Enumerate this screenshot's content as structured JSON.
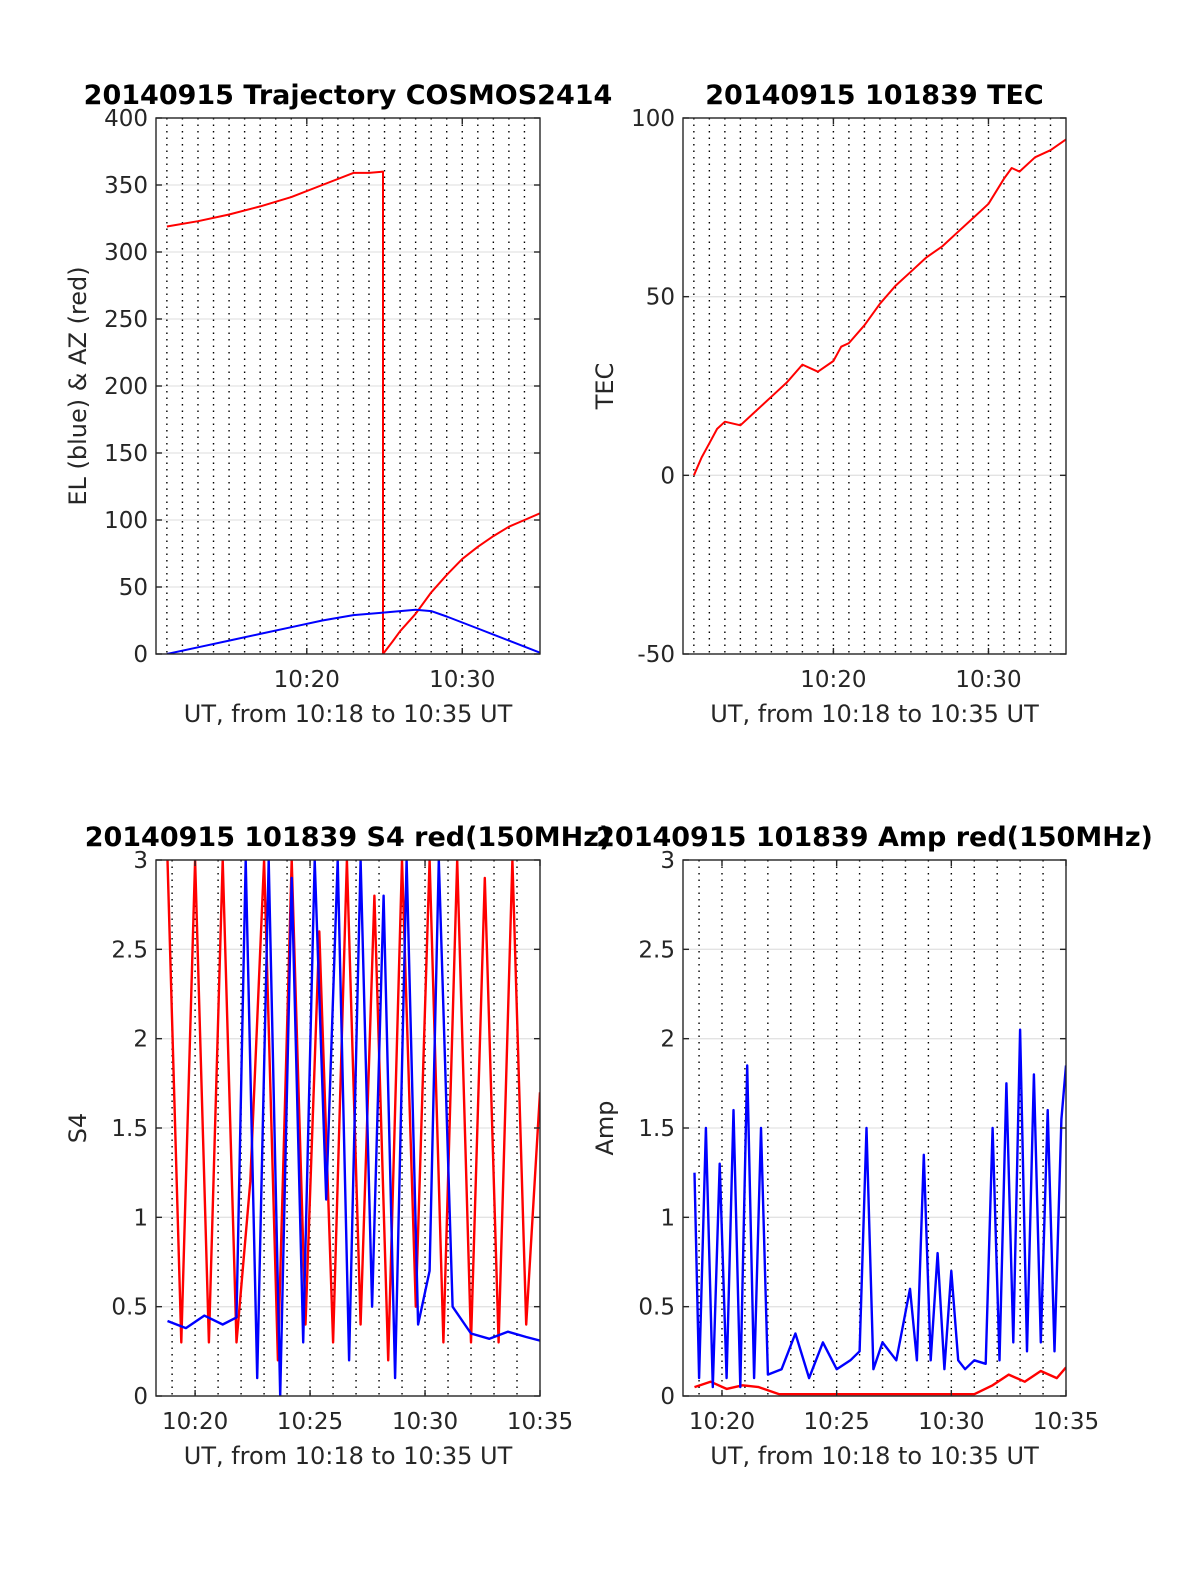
{
  "chart_data": [
    {
      "type": "line",
      "title": "20140915 Trajectory COSMOS2414",
      "xlabel": "UT, from 10:18 to 10:35 UT",
      "ylabel": "EL (blue) & AZ (red)",
      "xlim": [
        10.3,
        35
      ],
      "ylim": [
        0,
        400
      ],
      "yticks": [
        0,
        50,
        100,
        150,
        200,
        250,
        300,
        350,
        400
      ],
      "xticks": [
        {
          "value": 20,
          "label": "10:20"
        },
        {
          "value": 30,
          "label": "10:30"
        }
      ],
      "grid": true,
      "series": [
        {
          "color": "#ff0000",
          "x": [
            11,
            13,
            15,
            17,
            19,
            21,
            23,
            24,
            24.9,
            24.9,
            25.5,
            26,
            27,
            28,
            29,
            30,
            31,
            32,
            33,
            34,
            35
          ],
          "y": [
            319,
            323,
            328,
            334,
            341,
            350,
            359,
            359,
            360,
            0,
            9,
            17,
            30,
            46,
            59,
            71,
            80,
            88,
            95,
            100,
            105
          ]
        },
        {
          "color": "#0000ff",
          "x": [
            11,
            13,
            15,
            17,
            19,
            21,
            23,
            25,
            26,
            27,
            28,
            29,
            31,
            33,
            35
          ],
          "y": [
            0,
            5,
            10,
            15,
            20,
            25,
            29,
            31,
            32,
            33,
            32,
            28,
            19,
            10,
            1
          ]
        }
      ]
    },
    {
      "type": "line",
      "title": "20140915 101839 TEC",
      "xlabel": "UT, from 10:18 to 10:35 UT",
      "ylabel": "TEC",
      "xlim": [
        10.3,
        35
      ],
      "ylim": [
        -50,
        100
      ],
      "yticks": [
        -50,
        0,
        50,
        100
      ],
      "xticks": [
        {
          "value": 20,
          "label": "10:20"
        },
        {
          "value": 30,
          "label": "10:30"
        }
      ],
      "grid": true,
      "series": [
        {
          "color": "#ff0000",
          "x": [
            11,
            11.5,
            12,
            12.5,
            13,
            14,
            15,
            16,
            17,
            18,
            19,
            20,
            20.5,
            21,
            22,
            23,
            24,
            25,
            26,
            27,
            28,
            29,
            30,
            31,
            31.5,
            32,
            33,
            34,
            35
          ],
          "y": [
            0,
            5,
            9,
            13,
            15,
            14,
            18,
            22,
            26,
            31,
            29,
            32,
            36,
            37,
            42,
            48,
            53,
            57,
            61,
            64,
            68,
            72,
            76,
            83,
            86,
            85,
            89,
            91,
            94
          ]
        }
      ]
    },
    {
      "type": "line",
      "title": "20140915 101839 S4 red(150MHz)",
      "xlabel": "UT, from 10:18 to 10:35 UT",
      "ylabel": "S4",
      "xlim": [
        18.3,
        35
      ],
      "ylim": [
        0,
        3
      ],
      "yticks": [
        0,
        0.5,
        1,
        1.5,
        2,
        2.5,
        3
      ],
      "xticks": [
        {
          "value": 20,
          "label": "10:20"
        },
        {
          "value": 25,
          "label": "10:25"
        },
        {
          "value": 30,
          "label": "10:30"
        },
        {
          "value": 35,
          "label": "10:35"
        }
      ],
      "grid": true,
      "series": [
        {
          "color": "#ff0000",
          "x": [
            18.8,
            19.4,
            20.0,
            20.6,
            21.2,
            21.8,
            22.4,
            23.0,
            23.6,
            24.2,
            24.8,
            25.4,
            26.0,
            26.6,
            27.2,
            27.8,
            28.4,
            29.0,
            29.6,
            30.2,
            30.8,
            31.4,
            32.0,
            32.6,
            33.2,
            33.8,
            34.4,
            35.0
          ],
          "y": [
            3.0,
            0.3,
            3.0,
            0.3,
            3.0,
            0.3,
            1.2,
            3.0,
            0.2,
            3.0,
            0.4,
            2.6,
            0.3,
            3.0,
            0.4,
            2.8,
            0.2,
            3.0,
            0.5,
            3.0,
            0.3,
            3.0,
            0.3,
            2.9,
            0.3,
            3.0,
            0.4,
            1.7
          ]
        },
        {
          "color": "#0000ff",
          "x": [
            18.8,
            19.6,
            20.4,
            21.2,
            21.8,
            22.2,
            22.7,
            23.2,
            23.7,
            24.2,
            24.7,
            25.2,
            25.7,
            26.2,
            26.7,
            27.2,
            27.7,
            28.2,
            28.7,
            29.2,
            29.7,
            30.2,
            30.6,
            31.2,
            32.0,
            32.8,
            33.6,
            34.4,
            35.0
          ],
          "y": [
            0.42,
            0.38,
            0.45,
            0.4,
            0.44,
            3.0,
            0.1,
            3.0,
            0.0,
            2.9,
            0.3,
            3.0,
            1.1,
            3.0,
            0.2,
            3.0,
            0.5,
            2.8,
            0.1,
            3.0,
            0.4,
            0.7,
            3.0,
            0.5,
            0.35,
            0.32,
            0.36,
            0.33,
            0.31
          ]
        }
      ]
    },
    {
      "type": "line",
      "title": "20140915 101839 Amp red(150MHz)",
      "xlabel": "UT, from 10:18 to 10:35 UT",
      "ylabel": "Amp",
      "xlim": [
        18.3,
        35
      ],
      "ylim": [
        0,
        3
      ],
      "yticks": [
        0,
        0.5,
        1,
        1.5,
        2,
        2.5,
        3
      ],
      "xticks": [
        {
          "value": 20,
          "label": "10:20"
        },
        {
          "value": 25,
          "label": "10:25"
        },
        {
          "value": 30,
          "label": "10:30"
        },
        {
          "value": 35,
          "label": "10:35"
        }
      ],
      "grid": true,
      "series": [
        {
          "color": "#ff0000",
          "x": [
            18.8,
            19.5,
            20.2,
            20.9,
            21.6,
            22.5,
            25,
            28,
            31,
            31.8,
            32.5,
            33.2,
            33.9,
            34.6,
            35.0
          ],
          "y": [
            0.05,
            0.08,
            0.04,
            0.06,
            0.05,
            0.01,
            0.01,
            0.01,
            0.01,
            0.06,
            0.12,
            0.08,
            0.14,
            0.1,
            0.16
          ]
        },
        {
          "color": "#0000ff",
          "x": [
            18.8,
            19.0,
            19.3,
            19.6,
            19.9,
            20.2,
            20.5,
            20.8,
            21.1,
            21.4,
            21.7,
            22.0,
            22.6,
            23.2,
            23.8,
            24.4,
            25.0,
            25.6,
            26.0,
            26.3,
            26.6,
            27.0,
            27.6,
            28.2,
            28.5,
            28.8,
            29.1,
            29.4,
            29.7,
            30.0,
            30.3,
            30.6,
            31.0,
            31.5,
            31.8,
            32.1,
            32.4,
            32.7,
            33.0,
            33.3,
            33.6,
            33.9,
            34.2,
            34.5,
            34.8,
            35.0
          ],
          "y": [
            1.25,
            0.1,
            1.5,
            0.05,
            1.3,
            0.1,
            1.6,
            0.05,
            1.85,
            0.1,
            1.5,
            0.12,
            0.15,
            0.35,
            0.1,
            0.3,
            0.15,
            0.2,
            0.25,
            1.5,
            0.15,
            0.3,
            0.2,
            0.6,
            0.2,
            1.35,
            0.2,
            0.8,
            0.15,
            0.7,
            0.2,
            0.15,
            0.2,
            0.18,
            1.5,
            0.2,
            1.75,
            0.3,
            2.05,
            0.25,
            1.8,
            0.3,
            1.6,
            0.25,
            1.55,
            1.85
          ]
        }
      ]
    }
  ]
}
